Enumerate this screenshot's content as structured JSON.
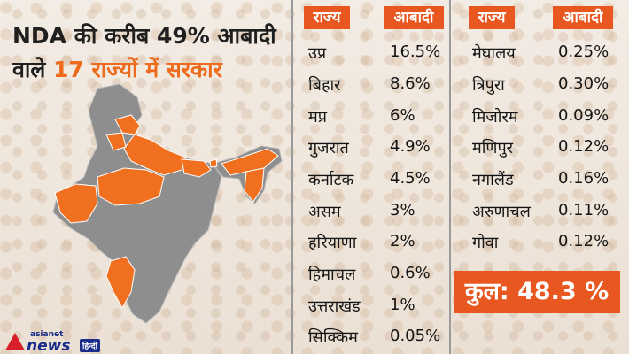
{
  "headline": {
    "line1": "NDA की करीब 49% आबादी",
    "line2_prefix": "वाले ",
    "line2_highlight": "17 राज्यों में सरकार"
  },
  "colors": {
    "accent": "#e8571f",
    "highlight_text": "#ee6a1c",
    "map_gray": "#8e8e8e",
    "map_orange": "#f0701f"
  },
  "table1": {
    "header_state": "राज्य",
    "header_pop": "आबादी",
    "rows": [
      {
        "state": "उप्र",
        "pop": "16.5%"
      },
      {
        "state": "बिहार",
        "pop": "8.6%"
      },
      {
        "state": "मप्र",
        "pop": "6%"
      },
      {
        "state": "गुजरात",
        "pop": "4.9%"
      },
      {
        "state": "कर्नाटक",
        "pop": "4.5%"
      },
      {
        "state": "असम",
        "pop": "3%"
      },
      {
        "state": "हरियाणा",
        "pop": "2%"
      },
      {
        "state": "हिमाचल",
        "pop": "0.6%"
      },
      {
        "state": "उत्तराखंड",
        "pop": "1%"
      },
      {
        "state": "सिक्किम",
        "pop": "0.05%"
      }
    ]
  },
  "table2": {
    "header_state": "राज्य",
    "header_pop": "आबादी",
    "rows": [
      {
        "state": "मेघालय",
        "pop": "0.25%"
      },
      {
        "state": "त्रिपुरा",
        "pop": "0.30%"
      },
      {
        "state": "मिजोरम",
        "pop": "0.09%"
      },
      {
        "state": "मणिपुर",
        "pop": "0.12%"
      },
      {
        "state": "नगालैंड",
        "pop": "0.16%"
      },
      {
        "state": "अरुणाचल",
        "pop": "0.11%"
      },
      {
        "state": "गोवा",
        "pop": "0.12%"
      }
    ]
  },
  "total": {
    "label": "कुल: 48.3 %"
  },
  "logo": {
    "top": "asianet",
    "main": "news",
    "lang": "हिन्दी"
  }
}
